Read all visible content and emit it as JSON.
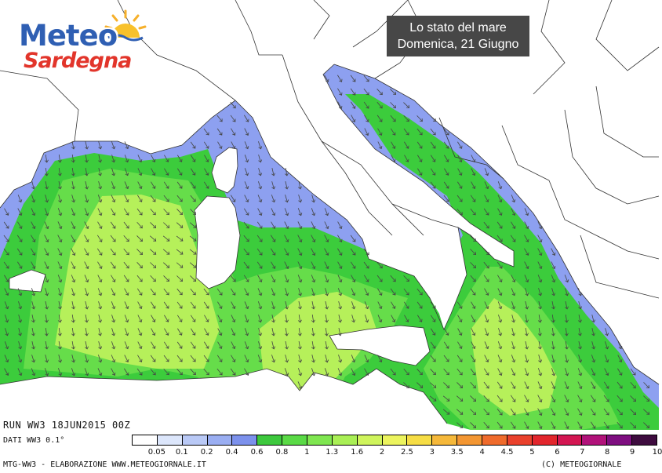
{
  "logo": {
    "line1": "Meteo",
    "line2": "Sardegna"
  },
  "title": {
    "line1": "Lo stato del mare",
    "line2": "Domenica, 21 Giugno"
  },
  "run_label": "RUN WW3 18JUN2015 00Z",
  "dati_label": "DATI WW3 0.1°",
  "footer_left": "MTG-WW3 - ELABORAZIONE WWW.METEOGIORNALE.IT",
  "footer_right": "(C) METEOGIORNALE",
  "legend": {
    "labels": [
      "0.05",
      "0.1",
      "0.2",
      "0.4",
      "0.6",
      "0.8",
      "1",
      "1.3",
      "1.6",
      "2",
      "2.5",
      "3",
      "3.5",
      "4",
      "4.5",
      "5",
      "6",
      "7",
      "8",
      "9",
      "10"
    ],
    "colors": [
      "#ffffff",
      "#dce6fb",
      "#b9c9f6",
      "#9aaef2",
      "#7c91ec",
      "#3dc83d",
      "#5ada46",
      "#7fe650",
      "#a9ef55",
      "#cff45c",
      "#ecf45e",
      "#f6dd45",
      "#f5b83a",
      "#f39632",
      "#ef6b2c",
      "#e9412c",
      "#e2262d",
      "#d31652",
      "#b1127a",
      "#7e0e80",
      "#3e0c3f"
    ]
  },
  "map_colors": {
    "land": "#ffffff",
    "border": "#333333",
    "shelf": "#8da0f0",
    "mid": "#3ccc3c",
    "deep": "#66dd4a",
    "high": "#b6f05a",
    "arrow": "#444444"
  },
  "icons": {
    "sun": "sun-icon",
    "arrows": "wave-direction-arrow-icon"
  }
}
